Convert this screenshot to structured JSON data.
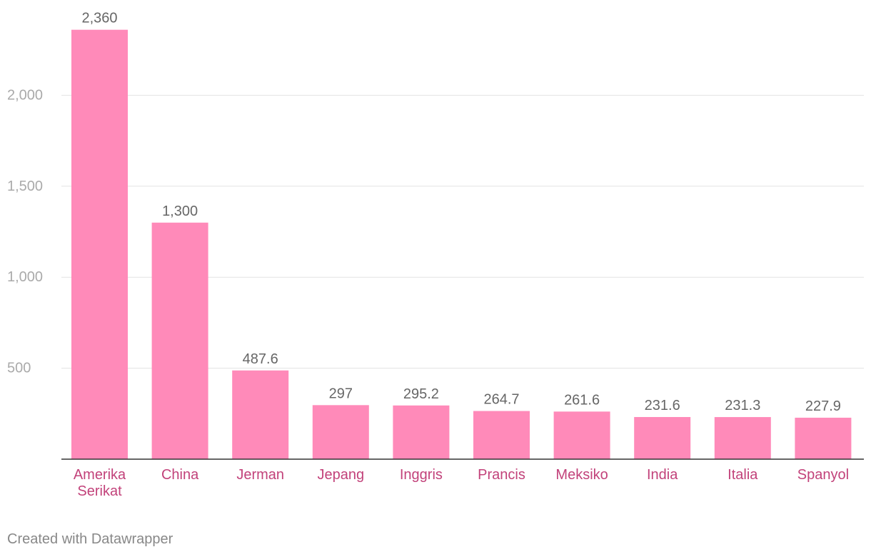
{
  "chart_data": {
    "type": "bar",
    "categories": [
      [
        "Amerika",
        "Serikat"
      ],
      [
        "China"
      ],
      [
        "Jerman"
      ],
      [
        "Jepang"
      ],
      [
        "Inggris"
      ],
      [
        "Prancis"
      ],
      [
        "Meksiko"
      ],
      [
        "India"
      ],
      [
        "Italia"
      ],
      [
        "Spanyol"
      ]
    ],
    "values": [
      2360,
      1300,
      487.6,
      297,
      295.2,
      264.7,
      261.6,
      231.6,
      231.3,
      227.9
    ],
    "value_labels": [
      "2,360",
      "1,300",
      "487.6",
      "297",
      "295.2",
      "264.7",
      "261.6",
      "231.6",
      "231.3",
      "227.9"
    ],
    "yticks": [
      500,
      1000,
      1500,
      2000
    ],
    "ytick_labels": [
      "500",
      "1,000",
      "1,500",
      "2,000"
    ],
    "ylim": [
      0,
      2500
    ],
    "grid": true,
    "colors": {
      "bar": "#ff8ab9",
      "category_label": "#c2427a",
      "value_label": "#666666",
      "axis_tick": "#aaaaaa",
      "grid": "#e3e3e3",
      "baseline": "#333333"
    }
  },
  "footer": {
    "credit": "Created with Datawrapper"
  }
}
